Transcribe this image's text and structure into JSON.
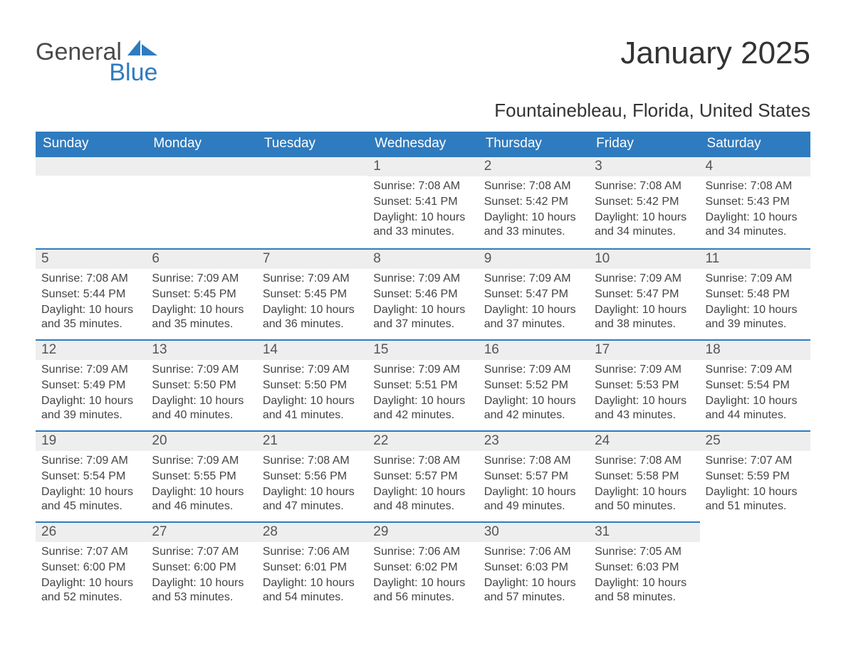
{
  "logo": {
    "text1": "General",
    "text2": "Blue"
  },
  "header": {
    "month_title": "January 2025",
    "location": "Fountainebleau, Florida, United States"
  },
  "calendar": {
    "type": "table",
    "columns": [
      "Sunday",
      "Monday",
      "Tuesday",
      "Wednesday",
      "Thursday",
      "Friday",
      "Saturday"
    ],
    "header_bg": "#2f7bbf",
    "header_text_color": "#ffffff",
    "day_bar_bg": "#eeeeee",
    "day_bar_border": "#2f7bbf",
    "body_text_color": "#444444",
    "background_color": "#ffffff",
    "header_fontsize": 19,
    "daynum_fontsize": 19,
    "body_fontsize": 16,
    "weeks": [
      [
        null,
        null,
        null,
        {
          "n": "1",
          "sunrise": "Sunrise: 7:08 AM",
          "sunset": "Sunset: 5:41 PM",
          "daylight": "Daylight: 10 hours and 33 minutes."
        },
        {
          "n": "2",
          "sunrise": "Sunrise: 7:08 AM",
          "sunset": "Sunset: 5:42 PM",
          "daylight": "Daylight: 10 hours and 33 minutes."
        },
        {
          "n": "3",
          "sunrise": "Sunrise: 7:08 AM",
          "sunset": "Sunset: 5:42 PM",
          "daylight": "Daylight: 10 hours and 34 minutes."
        },
        {
          "n": "4",
          "sunrise": "Sunrise: 7:08 AM",
          "sunset": "Sunset: 5:43 PM",
          "daylight": "Daylight: 10 hours and 34 minutes."
        }
      ],
      [
        {
          "n": "5",
          "sunrise": "Sunrise: 7:08 AM",
          "sunset": "Sunset: 5:44 PM",
          "daylight": "Daylight: 10 hours and 35 minutes."
        },
        {
          "n": "6",
          "sunrise": "Sunrise: 7:09 AM",
          "sunset": "Sunset: 5:45 PM",
          "daylight": "Daylight: 10 hours and 35 minutes."
        },
        {
          "n": "7",
          "sunrise": "Sunrise: 7:09 AM",
          "sunset": "Sunset: 5:45 PM",
          "daylight": "Daylight: 10 hours and 36 minutes."
        },
        {
          "n": "8",
          "sunrise": "Sunrise: 7:09 AM",
          "sunset": "Sunset: 5:46 PM",
          "daylight": "Daylight: 10 hours and 37 minutes."
        },
        {
          "n": "9",
          "sunrise": "Sunrise: 7:09 AM",
          "sunset": "Sunset: 5:47 PM",
          "daylight": "Daylight: 10 hours and 37 minutes."
        },
        {
          "n": "10",
          "sunrise": "Sunrise: 7:09 AM",
          "sunset": "Sunset: 5:47 PM",
          "daylight": "Daylight: 10 hours and 38 minutes."
        },
        {
          "n": "11",
          "sunrise": "Sunrise: 7:09 AM",
          "sunset": "Sunset: 5:48 PM",
          "daylight": "Daylight: 10 hours and 39 minutes."
        }
      ],
      [
        {
          "n": "12",
          "sunrise": "Sunrise: 7:09 AM",
          "sunset": "Sunset: 5:49 PM",
          "daylight": "Daylight: 10 hours and 39 minutes."
        },
        {
          "n": "13",
          "sunrise": "Sunrise: 7:09 AM",
          "sunset": "Sunset: 5:50 PM",
          "daylight": "Daylight: 10 hours and 40 minutes."
        },
        {
          "n": "14",
          "sunrise": "Sunrise: 7:09 AM",
          "sunset": "Sunset: 5:50 PM",
          "daylight": "Daylight: 10 hours and 41 minutes."
        },
        {
          "n": "15",
          "sunrise": "Sunrise: 7:09 AM",
          "sunset": "Sunset: 5:51 PM",
          "daylight": "Daylight: 10 hours and 42 minutes."
        },
        {
          "n": "16",
          "sunrise": "Sunrise: 7:09 AM",
          "sunset": "Sunset: 5:52 PM",
          "daylight": "Daylight: 10 hours and 42 minutes."
        },
        {
          "n": "17",
          "sunrise": "Sunrise: 7:09 AM",
          "sunset": "Sunset: 5:53 PM",
          "daylight": "Daylight: 10 hours and 43 minutes."
        },
        {
          "n": "18",
          "sunrise": "Sunrise: 7:09 AM",
          "sunset": "Sunset: 5:54 PM",
          "daylight": "Daylight: 10 hours and 44 minutes."
        }
      ],
      [
        {
          "n": "19",
          "sunrise": "Sunrise: 7:09 AM",
          "sunset": "Sunset: 5:54 PM",
          "daylight": "Daylight: 10 hours and 45 minutes."
        },
        {
          "n": "20",
          "sunrise": "Sunrise: 7:09 AM",
          "sunset": "Sunset: 5:55 PM",
          "daylight": "Daylight: 10 hours and 46 minutes."
        },
        {
          "n": "21",
          "sunrise": "Sunrise: 7:08 AM",
          "sunset": "Sunset: 5:56 PM",
          "daylight": "Daylight: 10 hours and 47 minutes."
        },
        {
          "n": "22",
          "sunrise": "Sunrise: 7:08 AM",
          "sunset": "Sunset: 5:57 PM",
          "daylight": "Daylight: 10 hours and 48 minutes."
        },
        {
          "n": "23",
          "sunrise": "Sunrise: 7:08 AM",
          "sunset": "Sunset: 5:57 PM",
          "daylight": "Daylight: 10 hours and 49 minutes."
        },
        {
          "n": "24",
          "sunrise": "Sunrise: 7:08 AM",
          "sunset": "Sunset: 5:58 PM",
          "daylight": "Daylight: 10 hours and 50 minutes."
        },
        {
          "n": "25",
          "sunrise": "Sunrise: 7:07 AM",
          "sunset": "Sunset: 5:59 PM",
          "daylight": "Daylight: 10 hours and 51 minutes."
        }
      ],
      [
        {
          "n": "26",
          "sunrise": "Sunrise: 7:07 AM",
          "sunset": "Sunset: 6:00 PM",
          "daylight": "Daylight: 10 hours and 52 minutes."
        },
        {
          "n": "27",
          "sunrise": "Sunrise: 7:07 AM",
          "sunset": "Sunset: 6:00 PM",
          "daylight": "Daylight: 10 hours and 53 minutes."
        },
        {
          "n": "28",
          "sunrise": "Sunrise: 7:06 AM",
          "sunset": "Sunset: 6:01 PM",
          "daylight": "Daylight: 10 hours and 54 minutes."
        },
        {
          "n": "29",
          "sunrise": "Sunrise: 7:06 AM",
          "sunset": "Sunset: 6:02 PM",
          "daylight": "Daylight: 10 hours and 56 minutes."
        },
        {
          "n": "30",
          "sunrise": "Sunrise: 7:06 AM",
          "sunset": "Sunset: 6:03 PM",
          "daylight": "Daylight: 10 hours and 57 minutes."
        },
        {
          "n": "31",
          "sunrise": "Sunrise: 7:05 AM",
          "sunset": "Sunset: 6:03 PM",
          "daylight": "Daylight: 10 hours and 58 minutes."
        },
        null
      ]
    ]
  }
}
